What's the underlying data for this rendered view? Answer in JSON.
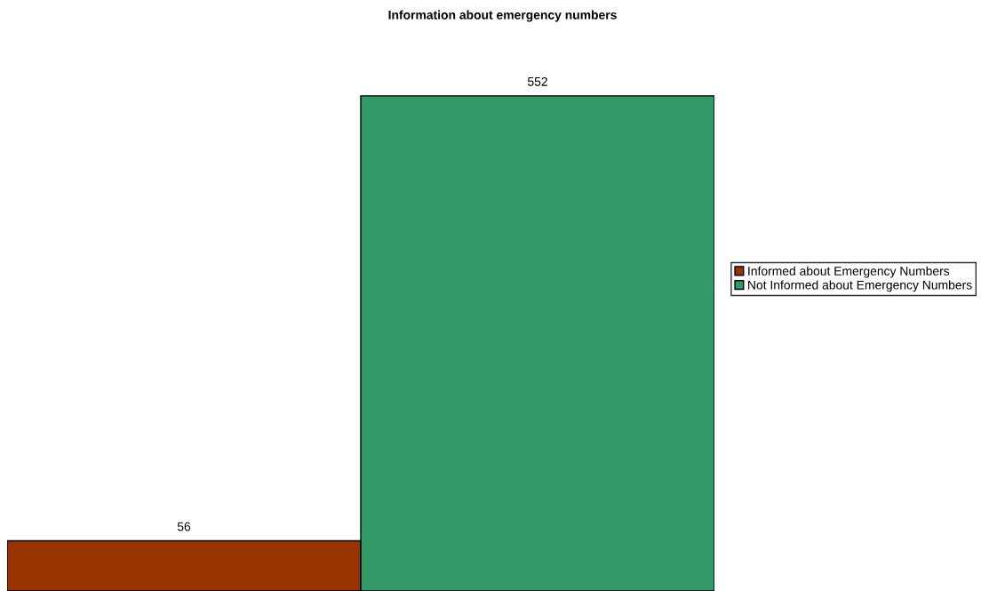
{
  "chart_data": {
    "type": "bar",
    "title": "Information about emergency numbers",
    "categories": [
      null
    ],
    "series": [
      {
        "name": "Informed about Emergency Numbers",
        "color": "#993300",
        "values": [
          56
        ]
      },
      {
        "name": "Not Informed about Emergency Numbers",
        "color": "#339966",
        "values": [
          552
        ]
      }
    ],
    "data_labels": true,
    "legend": "right",
    "grid": false
  }
}
